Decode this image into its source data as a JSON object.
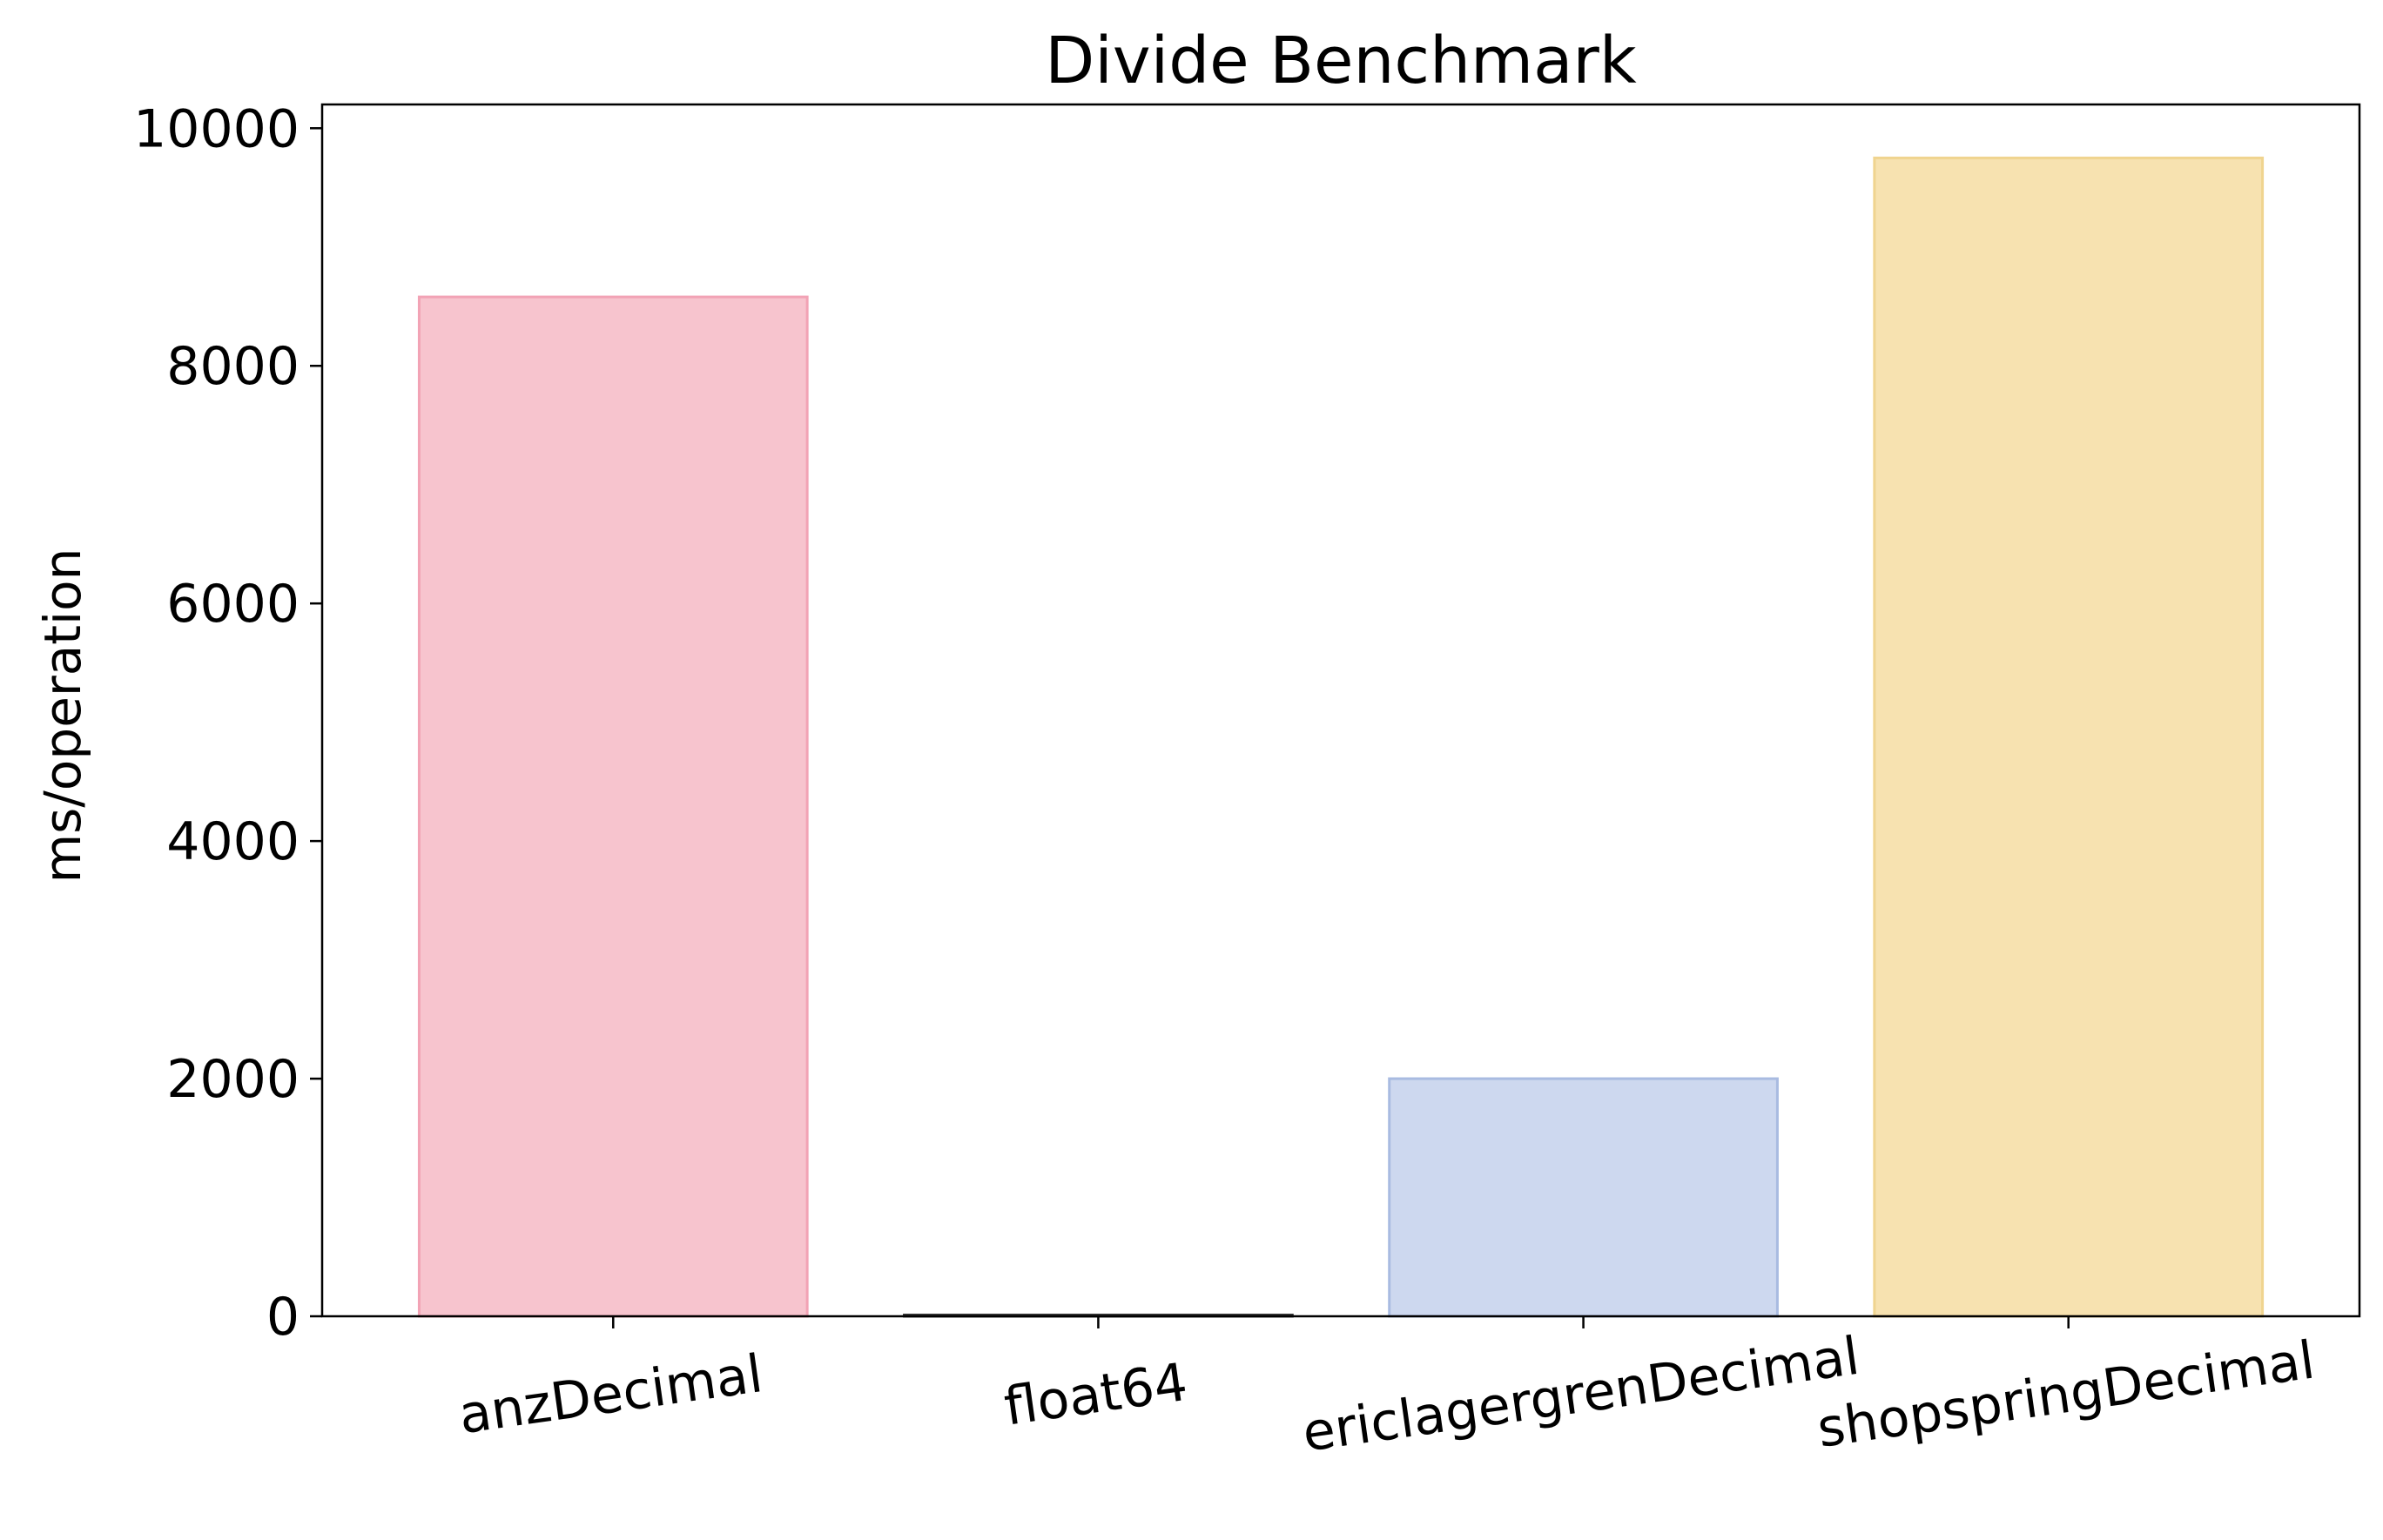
{
  "chart_data": {
    "type": "bar",
    "title": "Divide Benchmark",
    "xlabel": "",
    "ylabel": "ms/operation",
    "categories": [
      "anzDecimal",
      "float64",
      "ericlagergrenDecimal",
      "shopspringDecimal"
    ],
    "values": [
      8580,
      2,
      2000,
      9750
    ],
    "colors": [
      "#f7c4ce",
      "#d9d9d9",
      "#cdd8ef",
      "#f7e2b0"
    ],
    "edge_colors": [
      "#f2a3b5",
      "#333333",
      "#a9bbe1",
      "#f0d48f"
    ],
    "ylim": [
      0,
      10200
    ],
    "yticks": [
      0,
      2000,
      4000,
      6000,
      8000,
      10000
    ],
    "xtick_rotation_deg": -8,
    "grid": false,
    "legend": "none"
  }
}
